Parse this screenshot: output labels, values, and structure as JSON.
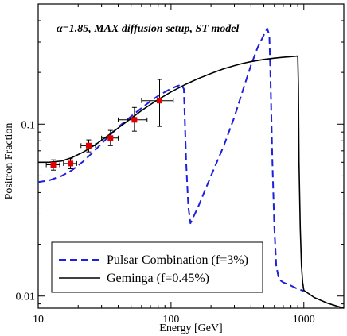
{
  "chart_data": {
    "type": "line",
    "annotation": "α=1.85, MAX diffusion setup, ST model",
    "xlabel": "Energy [GeV]",
    "ylabel": "Positron Fraction",
    "xscale": "log",
    "yscale": "log",
    "xlim": [
      10,
      2000
    ],
    "ylim": [
      0.0085,
      0.5
    ],
    "x_ticks": [
      10,
      100,
      1000
    ],
    "x_tick_labels": [
      "10",
      "100",
      "1000"
    ],
    "y_ticks": [
      0.01,
      0.1
    ],
    "y_tick_labels": [
      "0.01",
      "0.1"
    ],
    "grid": false,
    "legend_position": "bottom-left",
    "series": [
      {
        "name": "Pulsar Combination (f=3%)",
        "style": "dashed",
        "color": "#1f1fdc",
        "x": [
          10,
          12,
          15,
          18,
          22,
          27,
          33,
          40,
          50,
          60,
          70,
          80,
          90,
          100,
          110,
          120,
          125,
          130,
          135,
          140,
          160,
          200,
          250,
          300,
          350,
          400,
          450,
          500,
          530,
          550,
          560,
          580,
          600,
          620,
          650,
          700,
          800,
          900,
          1000
        ],
        "values": [
          0.046,
          0.047,
          0.05,
          0.054,
          0.061,
          0.071,
          0.083,
          0.096,
          0.111,
          0.124,
          0.136,
          0.146,
          0.154,
          0.161,
          0.166,
          0.17,
          0.16,
          0.06,
          0.033,
          0.0265,
          0.033,
          0.05,
          0.075,
          0.11,
          0.16,
          0.22,
          0.28,
          0.33,
          0.36,
          0.33,
          0.2,
          0.06,
          0.025,
          0.015,
          0.0125,
          0.012,
          0.0115,
          0.011,
          0.0107
        ]
      },
      {
        "name": "Geminga (f=0.45%)",
        "style": "solid",
        "color": "#000000",
        "x": [
          10,
          12,
          15,
          18,
          22,
          27,
          33,
          40,
          50,
          60,
          70,
          80,
          100,
          130,
          160,
          200,
          250,
          300,
          350,
          400,
          500,
          600,
          700,
          800,
          900,
          910,
          920,
          940,
          960,
          980,
          1000,
          1200,
          1500,
          1800,
          2000
        ],
        "values": [
          0.06,
          0.06,
          0.061,
          0.064,
          0.069,
          0.076,
          0.085,
          0.095,
          0.108,
          0.12,
          0.13,
          0.139,
          0.154,
          0.171,
          0.184,
          0.197,
          0.21,
          0.219,
          0.226,
          0.231,
          0.238,
          0.242,
          0.245,
          0.247,
          0.249,
          0.17,
          0.06,
          0.025,
          0.015,
          0.012,
          0.0108,
          0.0098,
          0.0091,
          0.0087,
          0.0085
        ]
      }
    ],
    "data_points": {
      "color": "#e00000",
      "x": [
        13,
        17.5,
        24,
        35,
        53,
        82
      ],
      "y": [
        0.058,
        0.059,
        0.075,
        0.083,
        0.106,
        0.137
      ],
      "xerr_low": [
        1.5,
        2,
        3,
        5,
        13,
        22
      ],
      "xerr_high": [
        1.5,
        2,
        3,
        5,
        13,
        22
      ],
      "yerr_low": [
        0.004,
        0.004,
        0.006,
        0.008,
        0.015,
        0.04
      ],
      "yerr_high": [
        0.004,
        0.004,
        0.006,
        0.009,
        0.019,
        0.045
      ]
    }
  }
}
